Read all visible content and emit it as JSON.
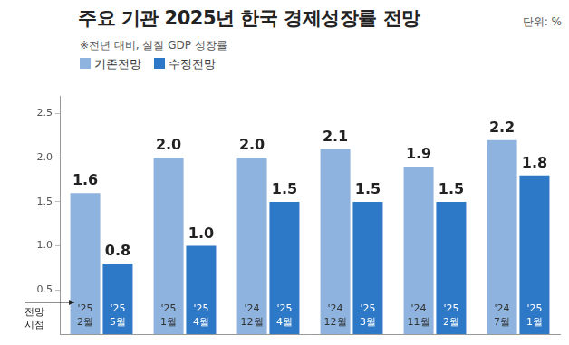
{
  "chart_data": {
    "type": "bar",
    "title": "주요 기관 2025년 한국 경제성장률 전망",
    "subtitle": "※전년 대비, 실질 GDP 성장률",
    "unit": "단위: %",
    "annotation": "전망 시점",
    "categories": [
      null,
      null,
      null,
      null,
      null,
      null
    ],
    "series": [
      {
        "name": "기존전망",
        "color": "#8db3de",
        "values": [
          1.6,
          2.0,
          2.0,
          2.1,
          1.9,
          2.2
        ],
        "value_labels": [
          "1.6",
          "2.0",
          "2.0",
          "2.1",
          "1.9",
          "2.2"
        ],
        "dates": [
          [
            "'25",
            "2월"
          ],
          [
            "'25",
            "1월"
          ],
          [
            "'24",
            "12월"
          ],
          [
            "'24",
            "12월"
          ],
          [
            "'24",
            "11월"
          ],
          [
            "'24",
            "7월"
          ]
        ]
      },
      {
        "name": "수정전망",
        "color": "#2e79c7",
        "values": [
          0.8,
          1.0,
          1.5,
          1.5,
          1.5,
          1.8
        ],
        "value_labels": [
          "0.8",
          "1.0",
          "1.5",
          "1.5",
          "1.5",
          "1.8"
        ],
        "dates": [
          [
            "'25",
            "5월"
          ],
          [
            "'25",
            "4월"
          ],
          [
            "'25",
            "4월"
          ],
          [
            "'25",
            "3월"
          ],
          [
            "'25",
            "2월"
          ],
          [
            "'25",
            "1월"
          ]
        ]
      }
    ],
    "ylim": [
      0,
      2.7
    ],
    "yticks": [
      0.5,
      {
        "value": 1.0,
        "label": "1.0"
      },
      1.5,
      {
        "value": 2.0,
        "label": "2.0"
      },
      2.5
    ],
    "grid": false,
    "legend": "top-left",
    "data_labels": true,
    "tick_labels": "y"
  }
}
